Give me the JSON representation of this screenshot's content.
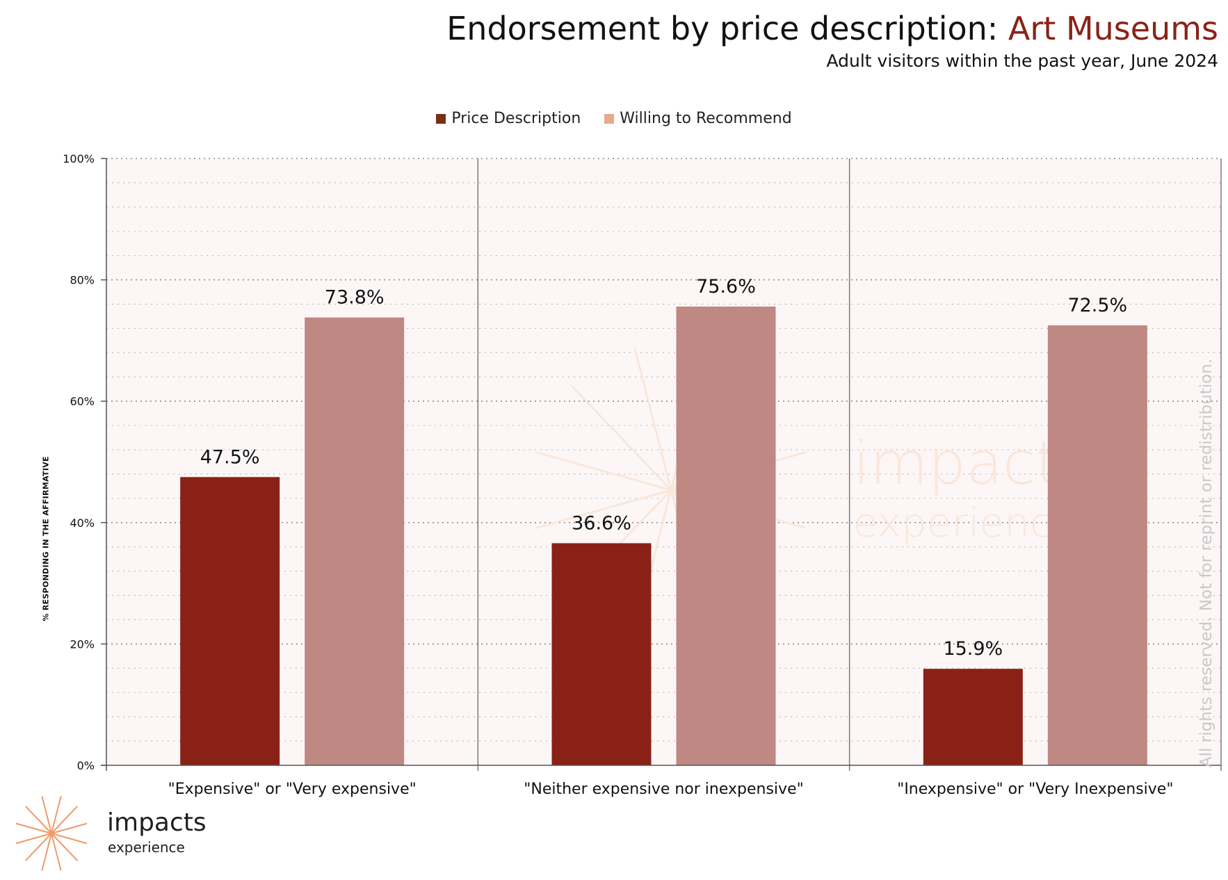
{
  "header": {
    "title_prefix": "Endorsement by price description: ",
    "title_highlight": "Art Museums",
    "subtitle": "Adult visitors within the past year, June 2024"
  },
  "colors": {
    "series_dark": "#8a2116",
    "series_light": "#bf8882",
    "legend_dark": "#7a2e14",
    "legend_light": "#e6aa8d",
    "plot_background": "#fcf7f6",
    "title_accent": "#8a2217",
    "watermark": "#fbe6da",
    "logo_star": "#ee9a6a"
  },
  "legend": [
    {
      "label": "Price Description",
      "color": "#7a2e14"
    },
    {
      "label": "Willing to Recommend",
      "color": "#e6aa8d"
    }
  ],
  "y_axis_title": "% RESPONDING IN THE AFFIRMATIVE",
  "watermark": {
    "name": "impacts",
    "sub": "experience",
    "icon": "sunburst-icon"
  },
  "copyright": "All rights reserved. Not for reprint or redistribution.",
  "footer_logo": {
    "name": "impacts",
    "sub": "experience",
    "icon": "sunburst-icon"
  },
  "chart_data": {
    "type": "bar",
    "categories": [
      "\"Expensive\" or \"Very expensive\"",
      "\"Neither expensive nor inexpensive\"",
      "\"Inexpensive\" or \"Very Inexpensive\""
    ],
    "series": [
      {
        "name": "Price Description",
        "values": [
          47.5,
          36.6,
          15.9
        ],
        "labels": [
          "47.5%",
          "36.6%",
          "15.9%"
        ],
        "color": "#8a2116"
      },
      {
        "name": "Willing to Recommend",
        "values": [
          73.8,
          75.6,
          72.5
        ],
        "labels": [
          "73.8%",
          "75.6%",
          "72.5%"
        ],
        "color": "#bf8882"
      }
    ],
    "ylabel": "% RESPONDING IN THE AFFIRMATIVE",
    "ylim": [
      0,
      100
    ],
    "yticks": [
      0,
      20,
      40,
      60,
      80,
      100
    ],
    "ytick_labels": [
      "0%",
      "20%",
      "40%",
      "60%",
      "80%",
      "100%"
    ],
    "minor_gridline_step": 4,
    "grid": true,
    "legend_position": "top-center"
  }
}
